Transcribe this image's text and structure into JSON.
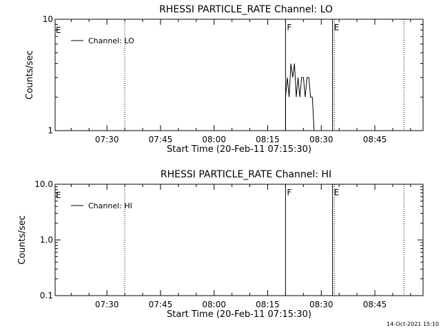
{
  "chart_data": [
    {
      "type": "line",
      "title": "RHESSI PARTICLE_RATE Channel: LO",
      "xlabel": "Start Time (20-Feb-11 07:15:30)",
      "ylabel": "Counts/sec",
      "y_scale": "log",
      "ylim": [
        1,
        10
      ],
      "y_ticks": [
        {
          "value": 1,
          "label": "1"
        },
        {
          "value": 10,
          "label": "10"
        }
      ],
      "xlim": [
        "07:15:30",
        "08:58:30"
      ],
      "x_ticks": [
        "07:30",
        "07:45",
        "08:00",
        "08:15",
        "08:30",
        "08:45"
      ],
      "grid": false,
      "legend_position": "top-left",
      "series": [
        {
          "name": "Channel: LO",
          "color": "#000000",
          "x": [
            "08:20:00",
            "08:20:30",
            "08:21:00",
            "08:21:30",
            "08:22:00",
            "08:22:30",
            "08:23:00",
            "08:23:30",
            "08:24:00",
            "08:24:30",
            "08:25:00",
            "08:25:30",
            "08:26:00",
            "08:26:30",
            "08:27:00",
            "08:27:30",
            "08:28:00"
          ],
          "y": [
            2,
            3,
            2,
            4,
            3,
            4,
            2,
            3,
            2,
            3,
            3,
            2,
            3,
            3,
            2,
            2,
            1
          ]
        }
      ],
      "vlines": [
        {
          "time": "07:35:00",
          "style": "dotted",
          "label": ""
        },
        {
          "time": "08:20:00",
          "style": "solid",
          "label": "F"
        },
        {
          "time": "08:33:10",
          "style": "solid",
          "label": "E"
        },
        {
          "time": "08:33:40",
          "style": "dotted",
          "label": ""
        },
        {
          "time": "08:53:10",
          "style": "dotted",
          "label": ""
        }
      ],
      "left_edge_label": "E"
    },
    {
      "type": "line",
      "title": "RHESSI PARTICLE_RATE Channel: HI",
      "xlabel": "Start Time (20-Feb-11 07:15:30)",
      "ylabel": "Counts/sec",
      "y_scale": "log",
      "ylim": [
        0.1,
        10
      ],
      "y_ticks": [
        {
          "value": 0.1,
          "label": "0.1"
        },
        {
          "value": 1,
          "label": "1.0"
        },
        {
          "value": 10,
          "label": "10.0"
        }
      ],
      "xlim": [
        "07:15:30",
        "08:58:30"
      ],
      "x_ticks": [
        "07:30",
        "07:45",
        "08:00",
        "08:15",
        "08:30",
        "08:45"
      ],
      "grid": false,
      "legend_position": "top-left",
      "series": [
        {
          "name": "Channel: HI",
          "color": "#000000",
          "x": [],
          "y": []
        }
      ],
      "vlines": [
        {
          "time": "07:35:00",
          "style": "dotted",
          "label": ""
        },
        {
          "time": "08:20:00",
          "style": "solid",
          "label": "F"
        },
        {
          "time": "08:33:10",
          "style": "solid",
          "label": "E"
        },
        {
          "time": "08:33:40",
          "style": "dotted",
          "label": ""
        },
        {
          "time": "08:53:10",
          "style": "dotted",
          "label": ""
        }
      ],
      "left_edge_label": "E"
    }
  ],
  "footer": {
    "timestamp": "14-Oct-2021 15:10"
  }
}
